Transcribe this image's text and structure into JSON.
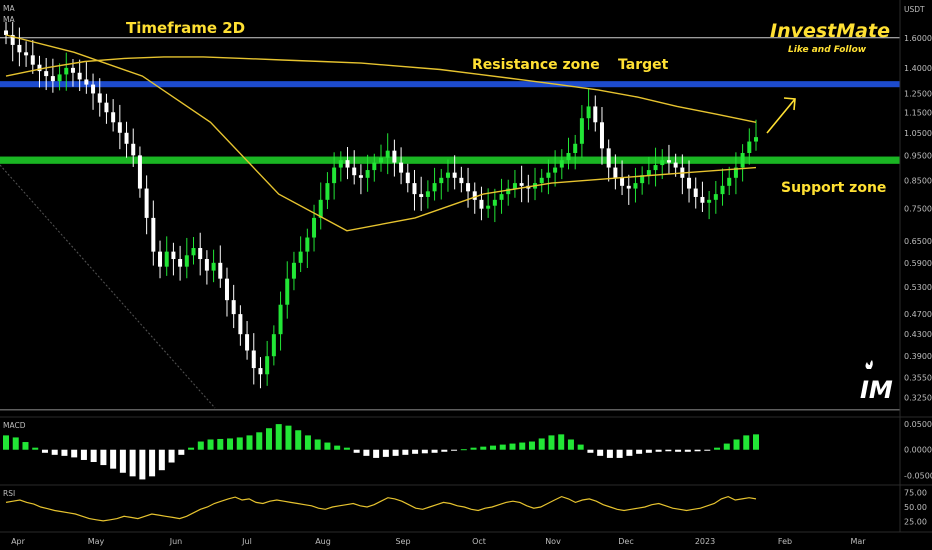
{
  "header": {
    "currency": "USDT",
    "indicator_main_1": "MA",
    "indicator_main_2": "MA",
    "indicator_macd": "MACD",
    "indicator_rsi": "RSI"
  },
  "brand": {
    "name": "InvestMate",
    "tagline": "Like and Follow",
    "logo_text": "IM",
    "logo_small_icon": "tradingview-flame-icon"
  },
  "annotations": {
    "timeframe": "Timeframe 2D",
    "resistance": "Resistance zone",
    "target": "Target",
    "support": "Support zone"
  },
  "colors": {
    "annotation": "#ffe033",
    "bull": "#22e636",
    "bear": "#ffffff",
    "ma": "#e6c32f",
    "resistance_band": "#1f4fd8",
    "support_band": "#1bbf25",
    "macd_pos": "#22e636",
    "macd_neg": "#ffffff",
    "rsi": "#e6c32f"
  },
  "chart_data": {
    "type": "candlestick",
    "title": "Timeframe 2D",
    "y_axis": {
      "scale": "log",
      "ticks": [
        "1.6000",
        "1.4000",
        "1.2500",
        "1.1500",
        "1.0500",
        "0.9500",
        "0.8500",
        "0.7500",
        "0.6500",
        "0.5900",
        "0.5300",
        "0.4700",
        "0.4300",
        "0.3900",
        "0.3550",
        "0.3250"
      ],
      "range": [
        0.31,
        1.85
      ]
    },
    "x_axis": {
      "labels": [
        "Apr",
        "May",
        "Jun",
        "Jul",
        "Aug",
        "Sep",
        "Oct",
        "Nov",
        "Dec",
        "2023",
        "Feb",
        "Mar"
      ]
    },
    "resistance_zone": [
      1.285,
      1.32
    ],
    "support_zone": [
      0.915,
      0.945
    ],
    "horizontal_line": 1.6,
    "close_values": [
      1.62,
      1.55,
      1.5,
      1.48,
      1.42,
      1.38,
      1.35,
      1.32,
      1.36,
      1.4,
      1.37,
      1.33,
      1.3,
      1.25,
      1.2,
      1.15,
      1.1,
      1.05,
      1.0,
      0.95,
      0.82,
      0.72,
      0.62,
      0.58,
      0.62,
      0.6,
      0.58,
      0.61,
      0.63,
      0.6,
      0.57,
      0.59,
      0.55,
      0.5,
      0.47,
      0.43,
      0.4,
      0.37,
      0.36,
      0.39,
      0.43,
      0.49,
      0.55,
      0.59,
      0.62,
      0.66,
      0.72,
      0.78,
      0.84,
      0.9,
      0.93,
      0.9,
      0.87,
      0.86,
      0.89,
      0.92,
      0.94,
      0.97,
      0.92,
      0.88,
      0.84,
      0.8,
      0.79,
      0.81,
      0.84,
      0.86,
      0.88,
      0.86,
      0.84,
      0.81,
      0.78,
      0.75,
      0.76,
      0.78,
      0.8,
      0.82,
      0.84,
      0.83,
      0.82,
      0.84,
      0.86,
      0.88,
      0.9,
      0.93,
      0.96,
      1.0,
      1.12,
      1.18,
      1.1,
      0.98,
      0.9,
      0.86,
      0.83,
      0.82,
      0.84,
      0.87,
      0.89,
      0.91,
      0.93,
      0.92,
      0.9,
      0.86,
      0.82,
      0.79,
      0.77,
      0.78,
      0.8,
      0.83,
      0.86,
      0.9,
      0.96,
      1.01,
      1.03
    ],
    "ma_long": [
      1.35,
      1.4,
      1.44,
      1.46,
      1.47,
      1.47,
      1.46,
      1.45,
      1.44,
      1.43,
      1.41,
      1.39,
      1.36,
      1.33,
      1.3,
      1.27,
      1.23,
      1.18,
      1.14,
      1.1
    ],
    "ma_short": [
      1.62,
      1.5,
      1.35,
      1.1,
      0.8,
      0.68,
      0.72,
      0.8,
      0.84,
      0.86,
      0.88,
      0.9
    ],
    "macd": {
      "range": [
        -0.065,
        0.06
      ],
      "ticks": [
        "0.0500",
        "0.0000",
        "-0.0500"
      ],
      "values": [
        0.028,
        0.024,
        0.015,
        0.004,
        -0.006,
        -0.01,
        -0.012,
        -0.015,
        -0.02,
        -0.024,
        -0.03,
        -0.037,
        -0.045,
        -0.052,
        -0.058,
        -0.052,
        -0.04,
        -0.025,
        -0.01,
        0.004,
        0.016,
        0.02,
        0.021,
        0.022,
        0.024,
        0.028,
        0.034,
        0.042,
        0.05,
        0.047,
        0.038,
        0.028,
        0.02,
        0.014,
        0.008,
        0.004,
        -0.006,
        -0.012,
        -0.016,
        -0.014,
        -0.012,
        -0.01,
        -0.008,
        -0.007,
        -0.006,
        -0.004,
        -0.002,
        0.001,
        0.004,
        0.006,
        0.008,
        0.01,
        0.012,
        0.014,
        0.016,
        0.022,
        0.028,
        0.03,
        0.02,
        0.01,
        -0.006,
        -0.012,
        -0.016,
        -0.016,
        -0.012,
        -0.008,
        -0.006,
        -0.004,
        -0.003,
        -0.004,
        -0.004,
        -0.003,
        -0.002,
        0.004,
        0.012,
        0.02,
        0.028,
        0.03
      ]
    },
    "rsi": {
      "ticks": [
        "75.00",
        "50.00",
        "25.00"
      ],
      "values": [
        58,
        60,
        62,
        58,
        55,
        50,
        47,
        44,
        42,
        40,
        38,
        34,
        30,
        28,
        26,
        28,
        30,
        34,
        32,
        30,
        34,
        38,
        36,
        34,
        32,
        30,
        34,
        40,
        46,
        50,
        56,
        60,
        64,
        67,
        62,
        64,
        58,
        56,
        60,
        62,
        60,
        58,
        56,
        54,
        52,
        48,
        46,
        50,
        52,
        54,
        56,
        52,
        50,
        54,
        60,
        66,
        64,
        60,
        54,
        48,
        46,
        50,
        54,
        58,
        56,
        52,
        50,
        46,
        44,
        48,
        50,
        54,
        58,
        60,
        58,
        52,
        48,
        50,
        56,
        62,
        68,
        64,
        58,
        62,
        64,
        60,
        54,
        50,
        46,
        44,
        46,
        48,
        50,
        54,
        56,
        52,
        48,
        46,
        44,
        46,
        48,
        52,
        56,
        64,
        68,
        62,
        64,
        66,
        64
      ]
    }
  }
}
